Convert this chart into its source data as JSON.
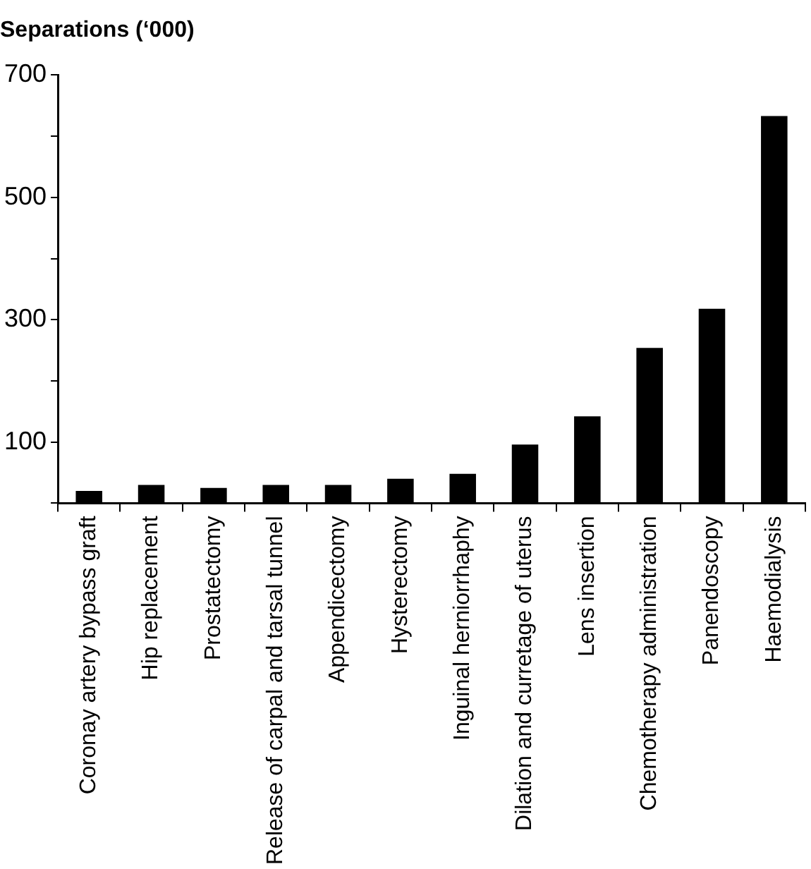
{
  "chart_data": {
    "type": "bar",
    "ylabel": "Separations (‘000)",
    "categories": [
      "Coronay artery bypass graft",
      "Hip replacement",
      "Prostatectomy",
      "Release of carpal and tarsal tunnel",
      "Appendicectomy",
      "Hysterectomy",
      "Inguinal herniorrhaphy",
      "Dilation and curretage of uterus",
      "Lens insertion",
      "Chemotherapy administration",
      "Panendoscopy",
      "Haemodialysis"
    ],
    "values": [
      20,
      30,
      25,
      30,
      30,
      40,
      48,
      96,
      142,
      254,
      318,
      633
    ],
    "color": "#000000",
    "ylim": [
      0,
      700
    ],
    "yticks": [
      {
        "value": 0,
        "label": null
      },
      100,
      {
        "value": 200,
        "label": null
      },
      300,
      {
        "value": 400,
        "label": null
      },
      500,
      {
        "value": 600,
        "label": null
      },
      700
    ],
    "grid": false,
    "legend": false
  }
}
